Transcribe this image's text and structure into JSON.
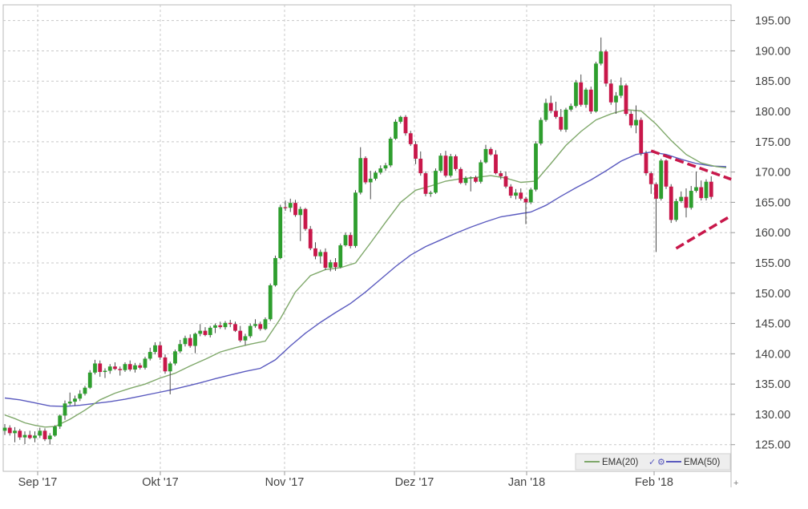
{
  "chart_data": {
    "type": "candlestick",
    "x_ticks": [
      "Sep '17",
      "Okt '17",
      "Nov '17",
      "Dez '17",
      "Jan '18",
      "Feb '18"
    ],
    "y_ticks": [
      "125.00",
      "130.00",
      "135.00",
      "140.00",
      "145.00",
      "150.00",
      "155.00",
      "160.00",
      "165.00",
      "170.00",
      "175.00",
      "180.00",
      "185.00",
      "190.00",
      "195.00"
    ],
    "ylim": [
      120.6,
      197.6
    ],
    "grid": true,
    "legend": {
      "position": "bottom-right",
      "items": [
        {
          "label": "EMA(20)",
          "color": "#7fa86a"
        },
        {
          "label": "EMA(50)",
          "color": "#5a5abf"
        }
      ]
    },
    "colors": {
      "up": "#2e9e2e",
      "down": "#c8174a",
      "trendline": "#c8174a"
    },
    "candles": [
      [
        127.3,
        128.4,
        126.6,
        127.8
      ],
      [
        127.8,
        128.2,
        126.5,
        126.9
      ],
      [
        126.9,
        127.9,
        125.4,
        127.3
      ],
      [
        127.3,
        127.6,
        125.8,
        126.2
      ],
      [
        126.2,
        127.2,
        125.1,
        126.6
      ],
      [
        126.6,
        127.3,
        125.9,
        126.1
      ],
      [
        126.1,
        127.2,
        125.4,
        126.5
      ],
      [
        126.5,
        127.8,
        126.1,
        127.3
      ],
      [
        127.3,
        127.7,
        125.6,
        125.9
      ],
      [
        125.9,
        126.9,
        125.0,
        126.5
      ],
      [
        126.5,
        128.2,
        126.3,
        128.0
      ],
      [
        128.0,
        130.0,
        127.6,
        129.8
      ],
      [
        129.8,
        132.3,
        129.1,
        131.8
      ],
      [
        131.8,
        133.6,
        131.5,
        132.1
      ],
      [
        132.1,
        133.1,
        131.4,
        132.6
      ],
      [
        132.6,
        134.0,
        132.2,
        133.4
      ],
      [
        133.4,
        134.7,
        133.1,
        134.4
      ],
      [
        134.4,
        137.3,
        134.2,
        136.9
      ],
      [
        136.9,
        139.0,
        136.6,
        138.4
      ],
      [
        138.4,
        138.9,
        136.2,
        137.0
      ],
      [
        137.0,
        137.6,
        136.0,
        137.2
      ],
      [
        137.2,
        138.3,
        136.7,
        137.9
      ],
      [
        137.9,
        138.6,
        137.3,
        137.5
      ],
      [
        137.5,
        137.9,
        136.4,
        137.3
      ],
      [
        137.3,
        138.6,
        137.0,
        138.3
      ],
      [
        138.3,
        138.9,
        137.1,
        137.4
      ],
      [
        137.4,
        138.5,
        136.9,
        138.1
      ],
      [
        138.1,
        138.5,
        137.4,
        137.7
      ],
      [
        137.7,
        139.5,
        137.4,
        139.2
      ],
      [
        139.2,
        141.0,
        138.9,
        140.3
      ],
      [
        140.3,
        141.9,
        139.9,
        141.4
      ],
      [
        141.4,
        142.0,
        139.0,
        139.4
      ],
      [
        139.4,
        139.9,
        136.7,
        137.1
      ],
      [
        137.1,
        138.7,
        133.3,
        138.4
      ],
      [
        138.4,
        140.7,
        138.1,
        140.4
      ],
      [
        140.4,
        142.3,
        140.1,
        141.6
      ],
      [
        141.6,
        143.0,
        141.2,
        142.6
      ],
      [
        142.6,
        143.2,
        141.0,
        141.3
      ],
      [
        141.3,
        143.5,
        140.1,
        143.3
      ],
      [
        143.3,
        144.9,
        142.9,
        143.8
      ],
      [
        143.8,
        144.4,
        142.9,
        143.1
      ],
      [
        143.1,
        144.6,
        142.7,
        144.3
      ],
      [
        144.3,
        145.0,
        143.4,
        144.7
      ],
      [
        144.7,
        145.3,
        144.1,
        144.4
      ],
      [
        144.4,
        145.4,
        144.0,
        145.1
      ],
      [
        145.1,
        145.6,
        144.4,
        144.9
      ],
      [
        144.9,
        145.3,
        143.6,
        143.8
      ],
      [
        143.8,
        144.6,
        141.9,
        142.2
      ],
      [
        142.2,
        143.3,
        141.4,
        142.9
      ],
      [
        142.9,
        145.0,
        142.6,
        144.6
      ],
      [
        144.6,
        145.7,
        144.3,
        144.9
      ],
      [
        144.9,
        145.3,
        143.8,
        144.1
      ],
      [
        144.1,
        146.0,
        143.9,
        145.7
      ],
      [
        145.7,
        151.6,
        145.4,
        151.3
      ],
      [
        151.3,
        156.2,
        151.1,
        155.8
      ],
      [
        155.8,
        164.6,
        155.6,
        164.2
      ],
      [
        164.2,
        165.3,
        163.6,
        164.1
      ],
      [
        164.1,
        165.6,
        163.4,
        164.9
      ],
      [
        164.9,
        165.4,
        162.6,
        162.9
      ],
      [
        162.9,
        164.3,
        158.6,
        163.9
      ],
      [
        163.9,
        164.1,
        160.3,
        160.6
      ],
      [
        160.6,
        161.1,
        157.1,
        157.4
      ],
      [
        157.4,
        158.4,
        155.6,
        156.1
      ],
      [
        156.1,
        157.2,
        154.9,
        156.8
      ],
      [
        156.8,
        157.4,
        153.8,
        154.2
      ],
      [
        154.2,
        155.5,
        153.6,
        155.1
      ],
      [
        155.1,
        155.8,
        153.7,
        154.3
      ],
      [
        154.3,
        158.2,
        154.1,
        157.9
      ],
      [
        157.9,
        160.0,
        157.7,
        159.6
      ],
      [
        159.6,
        160.0,
        157.4,
        157.8
      ],
      [
        157.8,
        167.0,
        157.5,
        166.6
      ],
      [
        166.6,
        174.1,
        166.3,
        172.3
      ],
      [
        172.3,
        172.6,
        168.0,
        168.3
      ],
      [
        168.3,
        170.2,
        165.5,
        168.9
      ],
      [
        168.9,
        170.2,
        168.6,
        169.9
      ],
      [
        169.9,
        171.1,
        169.6,
        170.6
      ],
      [
        170.6,
        171.5,
        170.2,
        171.1
      ],
      [
        171.1,
        175.8,
        170.8,
        175.5
      ],
      [
        175.5,
        178.7,
        175.3,
        178.3
      ],
      [
        178.3,
        179.3,
        178.0,
        179.1
      ],
      [
        179.1,
        179.4,
        176.0,
        176.4
      ],
      [
        176.4,
        176.8,
        174.3,
        174.6
      ],
      [
        174.6,
        175.1,
        171.3,
        172.2
      ],
      [
        172.2,
        173.4,
        169.4,
        169.8
      ],
      [
        169.8,
        170.1,
        166.0,
        166.4
      ],
      [
        166.4,
        166.9,
        165.9,
        166.6
      ],
      [
        166.6,
        170.6,
        166.4,
        170.2
      ],
      [
        170.2,
        173.1,
        169.9,
        172.7
      ],
      [
        172.7,
        173.5,
        169.1,
        169.4
      ],
      [
        169.4,
        173.0,
        169.1,
        172.6
      ],
      [
        172.6,
        172.9,
        170.2,
        170.5
      ],
      [
        170.5,
        170.8,
        168.0,
        168.2
      ],
      [
        168.2,
        169.3,
        167.8,
        169.0
      ],
      [
        169.0,
        169.3,
        166.8,
        169.1
      ],
      [
        169.1,
        169.4,
        168.2,
        168.4
      ],
      [
        168.4,
        172.0,
        168.1,
        171.6
      ],
      [
        171.6,
        174.5,
        171.4,
        173.8
      ],
      [
        173.8,
        174.1,
        172.7,
        172.9
      ],
      [
        172.9,
        173.6,
        169.6,
        169.8
      ],
      [
        169.8,
        170.2,
        168.8,
        169.3
      ],
      [
        169.3,
        170.1,
        167.3,
        167.6
      ],
      [
        167.6,
        168.0,
        165.7,
        166.1
      ],
      [
        166.1,
        167.2,
        165.5,
        166.6
      ],
      [
        166.6,
        167.3,
        165.3,
        165.6
      ],
      [
        165.6,
        165.9,
        161.4,
        165.0
      ],
      [
        165.0,
        167.4,
        164.7,
        167.1
      ],
      [
        167.1,
        175.1,
        166.8,
        174.7
      ],
      [
        174.7,
        179.0,
        174.4,
        178.6
      ],
      [
        178.6,
        182.1,
        178.3,
        181.4
      ],
      [
        181.4,
        182.6,
        179.7,
        180.1
      ],
      [
        180.1,
        181.6,
        178.8,
        179.1
      ],
      [
        179.1,
        180.4,
        176.7,
        177.0
      ],
      [
        177.0,
        180.6,
        176.6,
        180.3
      ],
      [
        180.3,
        181.3,
        180.0,
        180.9
      ],
      [
        180.9,
        185.2,
        180.6,
        184.8
      ],
      [
        184.8,
        186.1,
        180.8,
        181.1
      ],
      [
        181.1,
        183.9,
        180.6,
        183.6
      ],
      [
        183.6,
        184.1,
        179.6,
        180.0
      ],
      [
        180.0,
        188.2,
        179.8,
        187.9
      ],
      [
        187.9,
        192.2,
        187.6,
        189.9
      ],
      [
        189.9,
        190.2,
        184.1,
        184.6
      ],
      [
        184.6,
        185.3,
        181.1,
        181.5
      ],
      [
        181.5,
        183.2,
        179.6,
        182.6
      ],
      [
        182.6,
        185.6,
        182.2,
        184.3
      ],
      [
        184.3,
        184.6,
        179.3,
        179.6
      ],
      [
        179.6,
        180.1,
        177.3,
        177.7
      ],
      [
        177.7,
        181.0,
        176.4,
        178.6
      ],
      [
        178.6,
        179.0,
        172.7,
        173.1
      ],
      [
        173.1,
        173.5,
        169.4,
        169.8
      ],
      [
        169.8,
        170.1,
        166.4,
        168.0
      ],
      [
        168.0,
        168.3,
        156.8,
        165.6
      ],
      [
        165.6,
        172.2,
        165.3,
        171.9
      ],
      [
        171.9,
        172.1,
        167.2,
        167.6
      ],
      [
        167.6,
        168.0,
        161.6,
        162.1
      ],
      [
        162.1,
        165.6,
        161.8,
        165.2
      ],
      [
        165.2,
        166.8,
        164.9,
        165.9
      ],
      [
        165.9,
        167.3,
        162.5,
        164.1
      ],
      [
        164.1,
        167.7,
        163.8,
        166.9
      ],
      [
        166.9,
        170.1,
        166.6,
        167.5
      ],
      [
        167.5,
        168.6,
        165.3,
        165.7
      ],
      [
        165.7,
        168.8,
        165.3,
        168.4
      ],
      [
        168.4,
        169.3,
        165.5,
        165.9
      ]
    ],
    "ema20": [
      [
        0,
        129.9
      ],
      [
        2,
        129.3
      ],
      [
        4,
        128.6
      ],
      [
        6,
        128.2
      ],
      [
        8,
        127.9
      ],
      [
        10,
        128.0
      ],
      [
        13,
        129.2
      ],
      [
        16,
        130.7
      ],
      [
        19,
        132.4
      ],
      [
        22,
        133.5
      ],
      [
        25,
        134.3
      ],
      [
        28,
        135.0
      ],
      [
        31,
        136.0
      ],
      [
        34,
        136.8
      ],
      [
        37,
        138.0
      ],
      [
        40,
        139.1
      ],
      [
        43,
        140.3
      ],
      [
        46,
        141.0
      ],
      [
        49,
        141.6
      ],
      [
        52,
        142.1
      ],
      [
        55,
        145.8
      ],
      [
        58,
        150.2
      ],
      [
        61,
        152.9
      ],
      [
        64,
        153.9
      ],
      [
        67,
        154.2
      ],
      [
        70,
        155.0
      ],
      [
        73,
        158.3
      ],
      [
        76,
        161.7
      ],
      [
        79,
        165.0
      ],
      [
        82,
        167.0
      ],
      [
        85,
        167.7
      ],
      [
        88,
        168.5
      ],
      [
        91,
        168.9
      ],
      [
        94,
        169.1
      ],
      [
        97,
        169.4
      ],
      [
        100,
        169.0
      ],
      [
        103,
        168.3
      ],
      [
        106,
        168.5
      ],
      [
        109,
        171.4
      ],
      [
        112,
        174.4
      ],
      [
        115,
        176.7
      ],
      [
        118,
        178.6
      ],
      [
        121,
        179.6
      ],
      [
        124,
        180.3
      ],
      [
        127,
        180.1
      ],
      [
        130,
        177.9
      ],
      [
        133,
        175.2
      ],
      [
        136,
        172.9
      ],
      [
        139,
        171.5
      ],
      [
        142,
        170.9
      ],
      [
        144,
        170.7
      ]
    ],
    "ema50": [
      [
        0,
        132.7
      ],
      [
        3,
        132.4
      ],
      [
        6,
        131.9
      ],
      [
        9,
        131.4
      ],
      [
        12,
        131.3
      ],
      [
        15,
        131.5
      ],
      [
        18,
        131.8
      ],
      [
        21,
        132.1
      ],
      [
        24,
        132.5
      ],
      [
        27,
        133.0
      ],
      [
        30,
        133.5
      ],
      [
        33,
        134.0
      ],
      [
        36,
        134.6
      ],
      [
        39,
        135.2
      ],
      [
        42,
        135.9
      ],
      [
        45,
        136.5
      ],
      [
        48,
        137.1
      ],
      [
        51,
        137.6
      ],
      [
        54,
        139.0
      ],
      [
        57,
        141.3
      ],
      [
        60,
        143.4
      ],
      [
        63,
        145.2
      ],
      [
        66,
        146.8
      ],
      [
        69,
        148.3
      ],
      [
        72,
        150.2
      ],
      [
        75,
        152.3
      ],
      [
        78,
        154.4
      ],
      [
        81,
        156.3
      ],
      [
        84,
        157.7
      ],
      [
        87,
        158.8
      ],
      [
        90,
        159.9
      ],
      [
        93,
        160.9
      ],
      [
        96,
        161.8
      ],
      [
        99,
        162.6
      ],
      [
        102,
        163.0
      ],
      [
        105,
        163.4
      ],
      [
        108,
        164.5
      ],
      [
        111,
        166.0
      ],
      [
        114,
        167.4
      ],
      [
        117,
        168.7
      ],
      [
        120,
        170.2
      ],
      [
        123,
        171.8
      ],
      [
        126,
        172.9
      ],
      [
        129,
        173.3
      ],
      [
        132,
        172.9
      ],
      [
        135,
        172.1
      ],
      [
        138,
        171.4
      ],
      [
        141,
        171.0
      ],
      [
        144,
        170.9
      ]
    ],
    "trendlines": [
      {
        "from": [
          129,
          173.5
        ],
        "to": [
          145,
          168.8
        ]
      },
      {
        "from": [
          134,
          157.4
        ],
        "to": [
          145,
          162.8
        ]
      }
    ]
  }
}
